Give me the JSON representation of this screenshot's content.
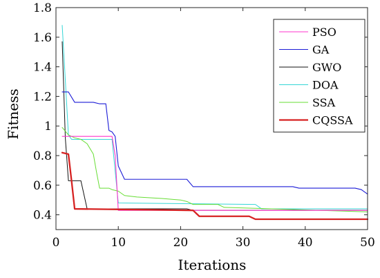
{
  "chart_data": {
    "type": "line",
    "title": "",
    "xlabel": "Iterations",
    "ylabel": "Fitness",
    "xlim": [
      0,
      50
    ],
    "ylim": [
      0.3,
      1.8
    ],
    "xticks": [
      0,
      10,
      20,
      30,
      40,
      50
    ],
    "yticks": [
      0.4,
      0.6,
      0.8,
      1,
      1.2,
      1.4,
      1.6,
      1.8
    ],
    "grid": false,
    "legend_position": "top-right",
    "series": [
      {
        "name": "PSO",
        "color": "#ff33cc",
        "width": 1.1,
        "x": [
          1,
          9,
          9.5,
          10,
          50
        ],
        "y": [
          0.93,
          0.93,
          0.8,
          0.43,
          0.43
        ]
      },
      {
        "name": "GA",
        "color": "#1a1ad6",
        "width": 1.1,
        "x": [
          1,
          2,
          3,
          6,
          7,
          8,
          8.5,
          9,
          9.5,
          10,
          11,
          21,
          22,
          38,
          39,
          48,
          49,
          50
        ],
        "y": [
          1.23,
          1.23,
          1.16,
          1.16,
          1.15,
          1.15,
          0.97,
          0.96,
          0.93,
          0.73,
          0.64,
          0.64,
          0.59,
          0.59,
          0.58,
          0.58,
          0.57,
          0.54
        ]
      },
      {
        "name": "GWO",
        "color": "#111111",
        "width": 1.0,
        "x": [
          1,
          1.5,
          2,
          4,
          5,
          21,
          22,
          50
        ],
        "y": [
          1.57,
          0.92,
          0.63,
          0.63,
          0.44,
          0.44,
          0.43,
          0.43
        ]
      },
      {
        "name": "DOA",
        "color": "#33d6d6",
        "width": 1.0,
        "x": [
          1,
          2,
          2.5,
          9,
          10,
          32,
          33,
          50
        ],
        "y": [
          1.68,
          0.94,
          0.91,
          0.91,
          0.48,
          0.47,
          0.44,
          0.44
        ]
      },
      {
        "name": "SSA",
        "color": "#66dd33",
        "width": 1.0,
        "x": [
          1,
          2,
          3,
          4,
          5,
          6,
          6.5,
          7,
          8.5,
          9,
          10,
          11,
          13,
          17,
          20,
          21,
          22,
          23,
          26,
          27,
          50
        ],
        "y": [
          0.99,
          0.94,
          0.92,
          0.91,
          0.88,
          0.81,
          0.69,
          0.58,
          0.58,
          0.57,
          0.56,
          0.53,
          0.52,
          0.51,
          0.5,
          0.49,
          0.47,
          0.47,
          0.47,
          0.45,
          0.42
        ]
      },
      {
        "name": "CQSSA",
        "color": "#d62222",
        "width": 2.3,
        "x": [
          1,
          2,
          2.5,
          3,
          22,
          23,
          31,
          32,
          50
        ],
        "y": [
          0.82,
          0.81,
          0.63,
          0.44,
          0.43,
          0.39,
          0.39,
          0.37,
          0.37
        ]
      }
    ]
  }
}
